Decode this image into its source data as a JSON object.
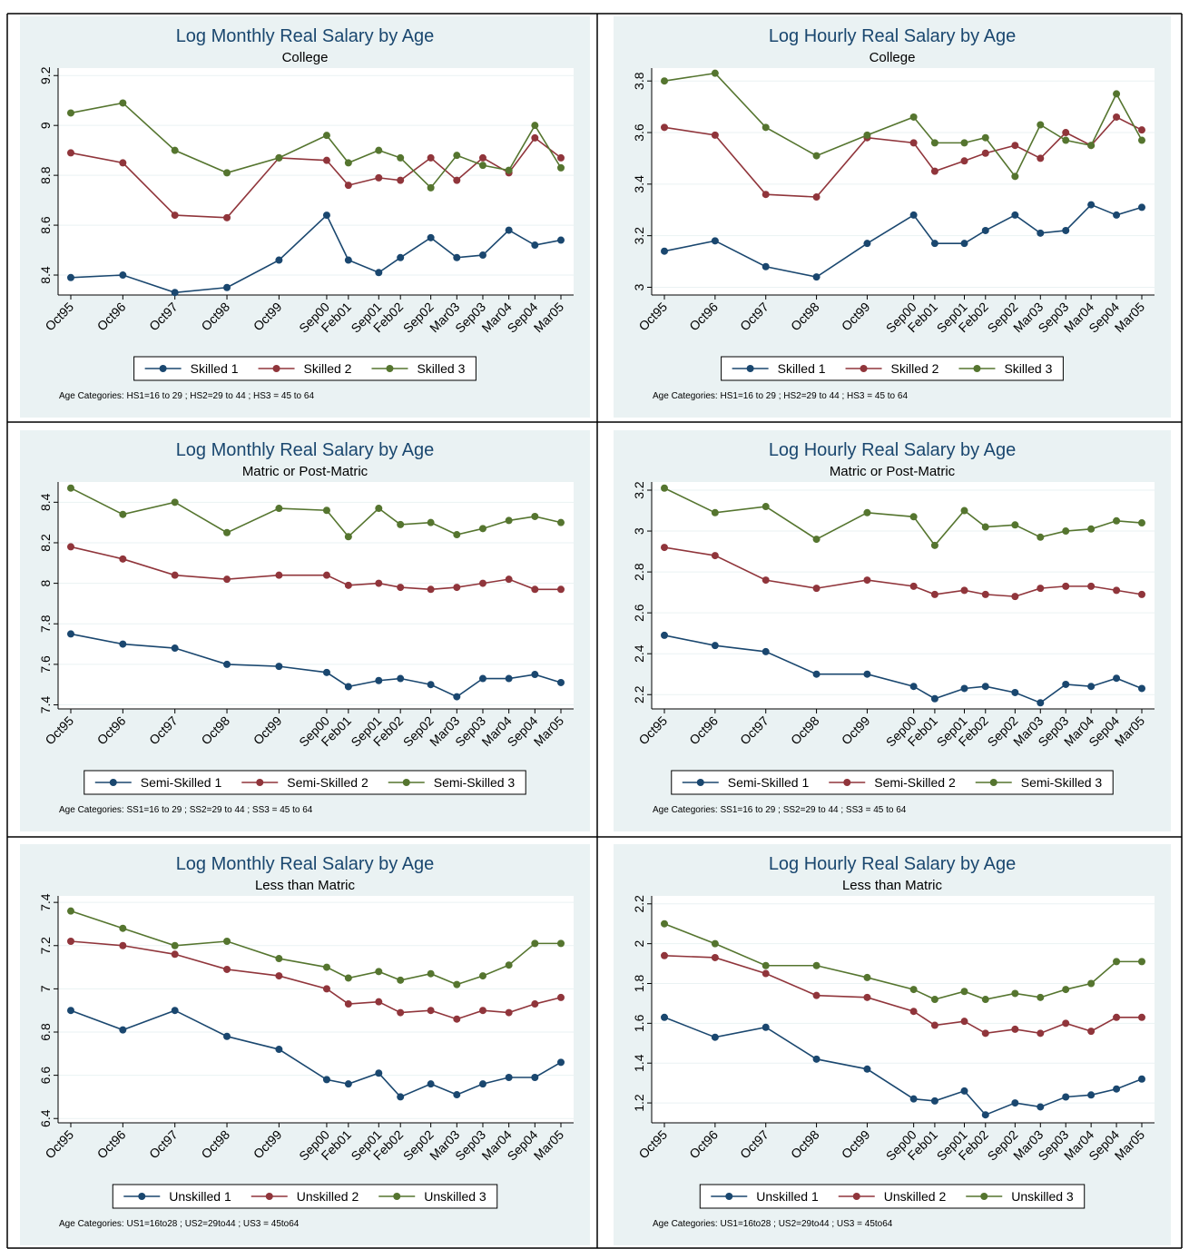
{
  "chart_data": [
    {
      "type": "line",
      "title": "Log Monthly Real Salary by Age",
      "subtitle": "College",
      "categories": [
        "Oct95",
        "Oct96",
        "Oct97",
        "Oct98",
        "Oct99",
        "Sep00",
        "Feb01",
        "Sep01",
        "Feb02",
        "Sep02",
        "Mar03",
        "Sep03",
        "Mar04",
        "Sep04",
        "Mar05"
      ],
      "series": [
        {
          "name": "Skilled 1",
          "color": "#1a476f",
          "values": [
            8.39,
            8.4,
            8.33,
            8.35,
            8.46,
            8.64,
            8.46,
            8.41,
            8.47,
            8.55,
            8.47,
            8.48,
            8.58,
            8.52,
            8.54
          ]
        },
        {
          "name": "Skilled 2",
          "color": "#90353b",
          "values": [
            8.89,
            8.85,
            8.64,
            8.63,
            8.87,
            8.86,
            8.76,
            8.79,
            8.78,
            8.87,
            8.78,
            8.87,
            8.81,
            8.95,
            8.87
          ]
        },
        {
          "name": "Skilled 3",
          "color": "#55752f",
          "values": [
            9.05,
            9.09,
            8.9,
            8.81,
            8.87,
            8.96,
            8.85,
            8.9,
            8.87,
            8.75,
            8.88,
            8.84,
            8.82,
            9.0,
            8.83
          ]
        }
      ],
      "ylim": [
        8.32,
        9.23
      ],
      "yticks": [
        8.4,
        8.6,
        8.8,
        {
          "value": 9,
          "label": "9"
        },
        9.2
      ],
      "grid": true,
      "note": "Age Categories: HS1=16 to 29 ; HS2=29 to 44 ; HS3 = 45 to 64"
    },
    {
      "type": "line",
      "title": "Log Hourly Real Salary by Age",
      "subtitle": "College",
      "categories": [
        "Oct95",
        "Oct96",
        "Oct97",
        "Oct98",
        "Oct99",
        "Sep00",
        "Feb01",
        "Sep01",
        "Feb02",
        "Sep02",
        "Mar03",
        "Sep03",
        "Mar04",
        "Sep04",
        "Mar05"
      ],
      "series": [
        {
          "name": "Skilled 1",
          "color": "#1a476f",
          "values": [
            3.14,
            3.18,
            3.08,
            3.04,
            3.17,
            3.28,
            3.17,
            3.17,
            3.22,
            3.28,
            3.21,
            3.22,
            3.32,
            3.28,
            3.31
          ]
        },
        {
          "name": "Skilled 2",
          "color": "#90353b",
          "values": [
            3.62,
            3.59,
            3.36,
            3.35,
            3.58,
            3.56,
            3.45,
            3.49,
            3.52,
            3.55,
            3.5,
            3.6,
            3.55,
            3.66,
            3.61
          ]
        },
        {
          "name": "Skilled 3",
          "color": "#55752f",
          "values": [
            3.8,
            3.83,
            3.62,
            3.51,
            3.59,
            3.66,
            3.56,
            3.56,
            3.58,
            3.43,
            3.63,
            3.57,
            3.55,
            3.75,
            3.57
          ]
        }
      ],
      "ylim": [
        2.97,
        3.85
      ],
      "yticks": [
        3,
        3.2,
        3.4,
        3.6,
        3.8
      ],
      "grid": true,
      "note": "Age Categories: HS1=16 to 29 ; HS2=29 to 44 ; HS3 = 45 to 64"
    },
    {
      "type": "line",
      "title": "Log Monthly Real Salary by Age",
      "subtitle": "Matric or Post-Matric",
      "categories": [
        "Oct95",
        "Oct96",
        "Oct97",
        "Oct98",
        "Oct99",
        "Sep00",
        "Feb01",
        "Sep01",
        "Feb02",
        "Sep02",
        "Mar03",
        "Sep03",
        "Mar04",
        "Sep04",
        "Mar05"
      ],
      "series": [
        {
          "name": "Semi-Skilled 1",
          "color": "#1a476f",
          "values": [
            7.75,
            7.7,
            7.68,
            7.6,
            7.59,
            7.56,
            7.49,
            7.52,
            7.53,
            7.5,
            7.44,
            7.53,
            7.53,
            7.55,
            7.51
          ]
        },
        {
          "name": "Semi-Skilled 2",
          "color": "#90353b",
          "values": [
            8.18,
            8.12,
            8.04,
            8.02,
            8.04,
            8.04,
            7.99,
            8.0,
            7.98,
            7.97,
            7.98,
            8.0,
            8.02,
            7.97,
            7.97
          ]
        },
        {
          "name": "Semi-Skilled 3",
          "color": "#55752f",
          "values": [
            8.47,
            8.34,
            8.4,
            8.25,
            8.37,
            8.36,
            8.23,
            8.37,
            8.29,
            8.3,
            8.24,
            8.27,
            8.31,
            8.33,
            8.3
          ]
        }
      ],
      "ylim": [
        7.38,
        8.5
      ],
      "yticks": [
        7.4,
        7.6,
        7.8,
        {
          "value": 8,
          "label": "8"
        },
        8.2,
        8.4
      ],
      "grid": true,
      "note": "Age Categories: SS1=16 to 29 ; SS2=29 to 44 ; SS3 = 45 to 64"
    },
    {
      "type": "line",
      "title": "Log Hourly Real Salary by Age",
      "subtitle": "Matric or Post-Matric",
      "categories": [
        "Oct95",
        "Oct96",
        "Oct97",
        "Oct98",
        "Oct99",
        "Sep00",
        "Feb01",
        "Sep01",
        "Feb02",
        "Sep02",
        "Mar03",
        "Sep03",
        "Mar04",
        "Sep04",
        "Mar05"
      ],
      "series": [
        {
          "name": "Semi-Skilled 1",
          "color": "#1a476f",
          "values": [
            2.49,
            2.44,
            2.41,
            2.3,
            2.3,
            2.24,
            2.18,
            2.23,
            2.24,
            2.21,
            2.16,
            2.25,
            2.24,
            2.28,
            2.23
          ]
        },
        {
          "name": "Semi-Skilled 2",
          "color": "#90353b",
          "values": [
            2.92,
            2.88,
            2.76,
            2.72,
            2.76,
            2.73,
            2.69,
            2.71,
            2.69,
            2.68,
            2.72,
            2.73,
            2.73,
            2.71,
            2.69
          ]
        },
        {
          "name": "Semi-Skilled 3",
          "color": "#55752f",
          "values": [
            3.21,
            3.09,
            3.12,
            2.96,
            3.09,
            3.07,
            2.93,
            3.1,
            3.02,
            3.03,
            2.97,
            3.0,
            3.01,
            3.05,
            3.04
          ]
        }
      ],
      "ylim": [
        2.13,
        3.24
      ],
      "yticks": [
        2.2,
        2.4,
        2.6,
        2.8,
        3,
        3.2
      ],
      "grid": true,
      "note": "Age Categories: SS1=16 to 29 ; SS2=29 to 44 ; SS3 = 45 to 64"
    },
    {
      "type": "line",
      "title": "Log Monthly Real Salary by Age",
      "subtitle": "Less than Matric",
      "categories": [
        "Oct95",
        "Oct96",
        "Oct97",
        "Oct98",
        "Oct99",
        "Sep00",
        "Feb01",
        "Sep01",
        "Feb02",
        "Sep02",
        "Mar03",
        "Sep03",
        "Mar04",
        "Sep04",
        "Mar05"
      ],
      "series": [
        {
          "name": "Unskilled 1",
          "color": "#1a476f",
          "values": [
            6.9,
            6.81,
            6.9,
            6.78,
            6.72,
            6.58,
            6.56,
            6.61,
            6.5,
            6.56,
            6.51,
            6.56,
            6.59,
            6.59,
            6.66
          ]
        },
        {
          "name": "Unskilled 2",
          "color": "#90353b",
          "values": [
            7.22,
            7.2,
            7.16,
            7.09,
            7.06,
            7.0,
            6.93,
            6.94,
            6.89,
            6.9,
            6.86,
            6.9,
            6.89,
            6.93,
            6.96
          ]
        },
        {
          "name": "Unskilled 3",
          "color": "#55752f",
          "values": [
            7.36,
            7.28,
            7.2,
            7.22,
            7.14,
            7.1,
            7.05,
            7.08,
            7.04,
            7.07,
            7.02,
            7.06,
            7.11,
            7.21,
            7.21
          ]
        }
      ],
      "ylim": [
        6.38,
        7.43
      ],
      "yticks": [
        6.4,
        6.6,
        6.8,
        7,
        7.2,
        7.4
      ],
      "grid": true,
      "note": "Age Categories: US1=16to28 ; US2=29to44 ; US3 = 45to64"
    },
    {
      "type": "line",
      "title": "Log Hourly Real Salary by Age",
      "subtitle": "Less than Matric",
      "categories": [
        "Oct95",
        "Oct96",
        "Oct97",
        "Oct98",
        "Oct99",
        "Sep00",
        "Feb01",
        "Sep01",
        "Feb02",
        "Sep02",
        "Mar03",
        "Sep03",
        "Mar04",
        "Sep04",
        "Mar05"
      ],
      "series": [
        {
          "name": "Unskilled 1",
          "color": "#1a476f",
          "values": [
            1.63,
            1.53,
            1.58,
            1.42,
            1.37,
            1.22,
            1.21,
            1.26,
            1.14,
            1.2,
            1.18,
            1.23,
            1.24,
            1.27,
            1.32
          ]
        },
        {
          "name": "Unskilled 2",
          "color": "#90353b",
          "values": [
            1.94,
            1.93,
            1.85,
            1.74,
            1.73,
            1.66,
            1.59,
            1.61,
            1.55,
            1.57,
            1.55,
            1.6,
            1.56,
            1.63,
            1.63
          ]
        },
        {
          "name": "Unskilled 3",
          "color": "#55752f",
          "values": [
            2.1,
            2.0,
            1.89,
            1.89,
            1.83,
            1.77,
            1.72,
            1.76,
            1.72,
            1.75,
            1.73,
            1.77,
            1.8,
            1.91,
            1.91
          ]
        }
      ],
      "ylim": [
        1.1,
        2.24
      ],
      "yticks": [
        1.2,
        1.4,
        1.6,
        1.8,
        2,
        2.2
      ],
      "grid": true,
      "note": "Age Categories: US1=16to28 ; US2=29to44 ; US3 = 45to64"
    }
  ]
}
